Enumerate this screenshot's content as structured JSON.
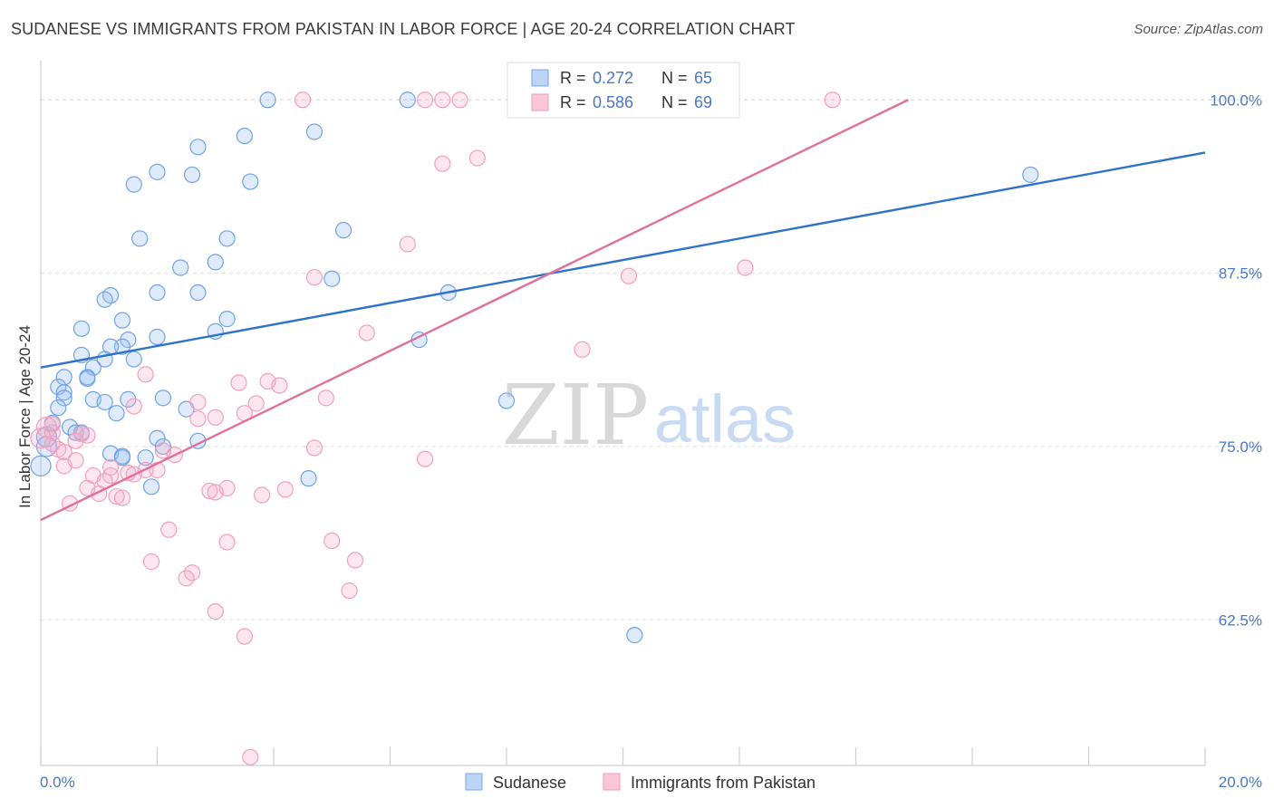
{
  "chart_data": {
    "type": "scatter",
    "title": "SUDANESE VS IMMIGRANTS FROM PAKISTAN IN LABOR FORCE | AGE 20-24 CORRELATION CHART",
    "source": "Source: ZipAtlas.com",
    "xlabel": "",
    "ylabel": "In Labor Force | Age 20-24",
    "xlim": [
      0,
      20
    ],
    "ylim": [
      52,
      102.5
    ],
    "x_tick_labels": [
      "0.0%",
      "20.0%"
    ],
    "y_ticks": [
      62.5,
      75.0,
      87.5,
      100.0
    ],
    "y_tick_labels": [
      "62.5%",
      "75.0%",
      "87.5%",
      "100.0%"
    ],
    "watermark": {
      "zip": "ZIP",
      "atlas": "atlas"
    },
    "colors": {
      "sudanese": "#6fa3e6",
      "sudanese_line": "#2f72cc",
      "pakistan": "#f0a0bd",
      "pakistan_line": "#e0709a",
      "tick_text": "#4a78c8"
    },
    "legend": {
      "entries": [
        {
          "name": "Sudanese",
          "r_label": "R =",
          "r": "0.272",
          "n_label": "N =",
          "n": "65"
        },
        {
          "name": "Immigrants from Pakistan",
          "r_label": "R =",
          "r": "0.586",
          "n_label": "N =",
          "n": "69"
        }
      ]
    },
    "series": [
      {
        "name": "Sudanese",
        "trend": {
          "x": [
            0,
            20
          ],
          "y": [
            80.7,
            96.2
          ]
        },
        "points": [
          [
            3.9,
            100
          ],
          [
            6.3,
            100
          ],
          [
            4.7,
            97.7
          ],
          [
            3.5,
            97.4
          ],
          [
            2.7,
            96.6
          ],
          [
            2.0,
            94.8
          ],
          [
            2.6,
            94.6
          ],
          [
            1.6,
            93.9
          ],
          [
            3.6,
            94.1
          ],
          [
            17.0,
            94.6
          ],
          [
            1.7,
            90.0
          ],
          [
            3.2,
            90.0
          ],
          [
            5.2,
            90.6
          ],
          [
            2.4,
            87.9
          ],
          [
            3.0,
            88.3
          ],
          [
            5.0,
            87.1
          ],
          [
            2.0,
            86.1
          ],
          [
            2.7,
            86.1
          ],
          [
            1.2,
            85.9
          ],
          [
            1.1,
            85.6
          ],
          [
            7.0,
            86.1
          ],
          [
            1.4,
            84.1
          ],
          [
            3.2,
            84.2
          ],
          [
            3.0,
            83.3
          ],
          [
            0.7,
            83.5
          ],
          [
            2.0,
            82.9
          ],
          [
            1.5,
            82.7
          ],
          [
            1.4,
            82.2
          ],
          [
            1.2,
            82.2
          ],
          [
            6.5,
            82.7
          ],
          [
            0.7,
            81.6
          ],
          [
            1.1,
            81.3
          ],
          [
            1.6,
            81.3
          ],
          [
            0.9,
            80.7
          ],
          [
            0.4,
            80.0
          ],
          [
            0.8,
            80.0
          ],
          [
            0.8,
            79.9
          ],
          [
            0.3,
            79.3
          ],
          [
            0.4,
            78.9
          ],
          [
            0.4,
            78.5
          ],
          [
            0.9,
            78.4
          ],
          [
            1.1,
            78.2
          ],
          [
            2.1,
            78.5
          ],
          [
            1.5,
            78.4
          ],
          [
            8.0,
            78.3
          ],
          [
            0.3,
            77.8
          ],
          [
            1.3,
            77.4
          ],
          [
            2.5,
            77.7
          ],
          [
            0.2,
            76.7
          ],
          [
            0.5,
            76.4
          ],
          [
            0.6,
            76.0
          ],
          [
            0.7,
            76.0
          ],
          [
            2.0,
            75.6
          ],
          [
            2.7,
            75.4
          ],
          [
            2.1,
            75.0
          ],
          [
            0.1,
            75.7
          ],
          [
            0.1,
            75.0
          ],
          [
            1.2,
            74.5
          ],
          [
            1.4,
            74.3
          ],
          [
            1.8,
            74.2
          ],
          [
            4.6,
            72.7
          ],
          [
            1.9,
            72.1
          ],
          [
            0.0,
            73.6
          ],
          [
            10.2,
            61.4
          ],
          [
            1.4,
            74.2
          ]
        ]
      },
      {
        "name": "Immigrants from Pakistan",
        "trend": {
          "x": [
            0,
            14.9
          ],
          "y": [
            69.7,
            100
          ]
        },
        "points": [
          [
            4.5,
            100
          ],
          [
            6.6,
            100
          ],
          [
            6.9,
            100
          ],
          [
            7.2,
            100
          ],
          [
            13.6,
            100
          ],
          [
            6.9,
            95.4
          ],
          [
            7.5,
            95.8
          ],
          [
            6.3,
            89.6
          ],
          [
            4.7,
            87.2
          ],
          [
            10.1,
            87.3
          ],
          [
            12.1,
            87.9
          ],
          [
            5.6,
            83.2
          ],
          [
            9.3,
            82.0
          ],
          [
            1.8,
            80.2
          ],
          [
            3.4,
            79.6
          ],
          [
            3.9,
            79.7
          ],
          [
            4.1,
            79.4
          ],
          [
            4.9,
            78.5
          ],
          [
            2.7,
            78.2
          ],
          [
            3.7,
            78.1
          ],
          [
            1.6,
            77.9
          ],
          [
            3.5,
            77.4
          ],
          [
            3.0,
            77.1
          ],
          [
            2.7,
            77.0
          ],
          [
            0.2,
            76.6
          ],
          [
            0.2,
            76.0
          ],
          [
            0.7,
            75.9
          ],
          [
            0.8,
            75.8
          ],
          [
            0.6,
            75.4
          ],
          [
            0.2,
            75.2
          ],
          [
            0.3,
            74.8
          ],
          [
            0.4,
            74.6
          ],
          [
            2.1,
            74.7
          ],
          [
            2.3,
            74.4
          ],
          [
            0.6,
            74.0
          ],
          [
            4.7,
            74.9
          ],
          [
            6.6,
            74.1
          ],
          [
            0.4,
            73.6
          ],
          [
            1.2,
            73.5
          ],
          [
            1.5,
            73.1
          ],
          [
            1.8,
            73.3
          ],
          [
            1.2,
            72.9
          ],
          [
            1.6,
            73.0
          ],
          [
            2.0,
            73.3
          ],
          [
            1.1,
            72.5
          ],
          [
            0.9,
            72.9
          ],
          [
            0.8,
            72.0
          ],
          [
            1.0,
            71.6
          ],
          [
            1.3,
            71.4
          ],
          [
            1.4,
            71.3
          ],
          [
            2.9,
            71.8
          ],
          [
            3.0,
            71.7
          ],
          [
            3.2,
            72.0
          ],
          [
            3.8,
            71.5
          ],
          [
            4.2,
            71.9
          ],
          [
            0.5,
            70.9
          ],
          [
            2.2,
            69.0
          ],
          [
            3.2,
            68.1
          ],
          [
            5.0,
            68.2
          ],
          [
            1.9,
            66.7
          ],
          [
            5.4,
            66.8
          ],
          [
            2.6,
            65.9
          ],
          [
            2.5,
            65.5
          ],
          [
            5.3,
            64.6
          ],
          [
            3.0,
            63.1
          ],
          [
            3.5,
            61.3
          ],
          [
            3.6,
            52.6
          ],
          [
            0.1,
            76.4
          ],
          [
            0.0,
            75.6
          ]
        ]
      }
    ]
  }
}
